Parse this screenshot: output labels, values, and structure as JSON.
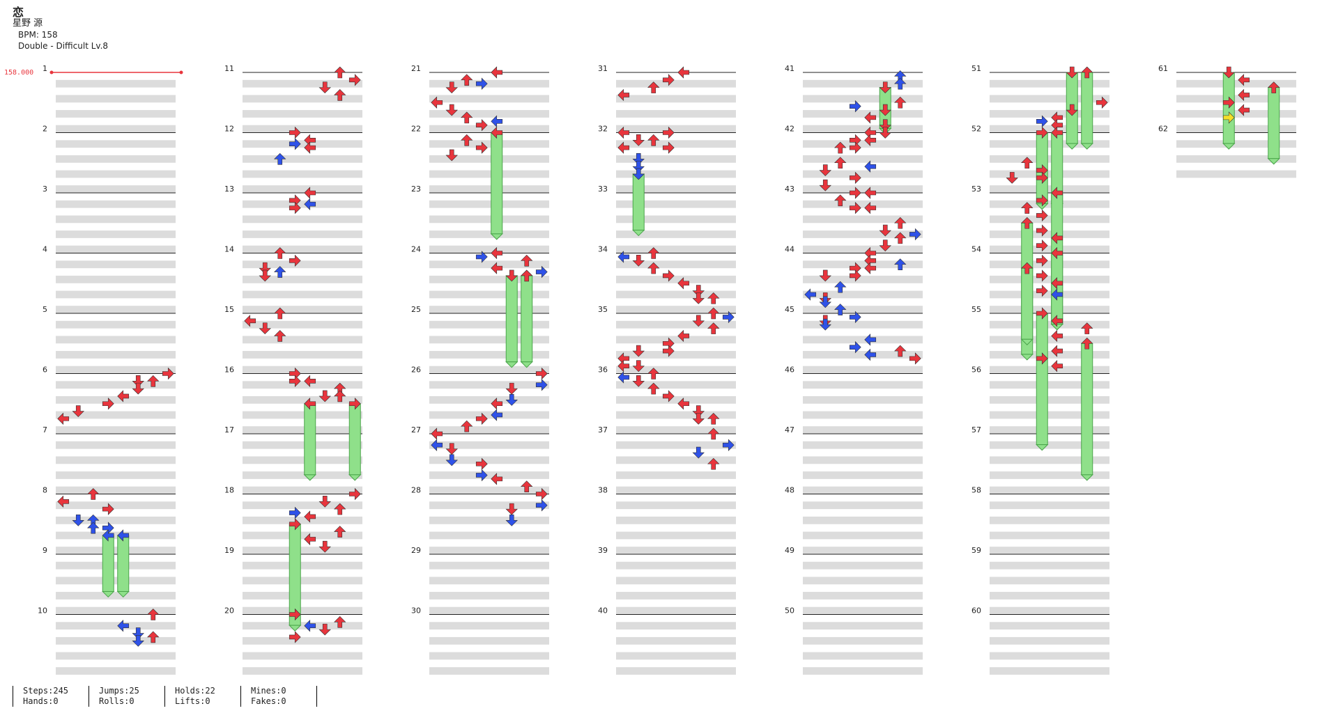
{
  "header": {
    "title": "恋",
    "artist": "星野 源",
    "bpm": "BPM: 158",
    "difficulty": "Double - Difficult Lv.8"
  },
  "bpm_marker": {
    "label": "158.000"
  },
  "colors": {
    "red": "#e8353d",
    "blue": "#2f52e8",
    "yellow": "#f3df28",
    "hold": "#8fe08a",
    "band": "#dcdcdc"
  },
  "measures": [
    {
      "n": "1",
      "notes": []
    },
    {
      "n": "2",
      "notes": []
    },
    {
      "n": "3",
      "notes": []
    },
    {
      "n": "4",
      "notes": []
    },
    {
      "n": "5",
      "notes": []
    },
    {
      "n": "6",
      "notes": [
        [
          0,
          7,
          "R"
        ],
        [
          0.5,
          5,
          "D"
        ],
        [
          0.5,
          6,
          "U"
        ],
        [
          1,
          5,
          "D"
        ],
        [
          1.5,
          4,
          "L"
        ],
        [
          2,
          3,
          "R"
        ],
        [
          2.5,
          1,
          "D"
        ],
        [
          3,
          0,
          "L"
        ]
      ]
    },
    {
      "n": "7",
      "notes": []
    },
    {
      "n": "8",
      "notes": [
        [
          0,
          2,
          "U"
        ],
        [
          0.5,
          0,
          "L"
        ],
        [
          1,
          3,
          "R"
        ],
        [
          1.75,
          1,
          "D"
        ],
        [
          1.75,
          2,
          "U"
        ],
        [
          2.25,
          2,
          "U"
        ],
        [
          2.25,
          3,
          "R"
        ],
        [
          2.75,
          3,
          "L",
          1
        ],
        [
          2.75,
          4,
          "L",
          1
        ]
      ]
    },
    {
      "n": "9",
      "notes": []
    },
    {
      "n": "10",
      "notes": [
        [
          0,
          6,
          "U"
        ],
        [
          0.75,
          4,
          "L"
        ],
        [
          1.25,
          5,
          "D"
        ],
        [
          1.75,
          5,
          "D"
        ],
        [
          1.5,
          6,
          "U"
        ]
      ]
    },
    {
      "n": "11",
      "notes": [
        [
          0,
          6,
          "U"
        ],
        [
          0.5,
          7,
          "R"
        ],
        [
          1,
          5,
          "D"
        ],
        [
          1.5,
          6,
          "U"
        ]
      ]
    },
    {
      "n": "12",
      "notes": [
        [
          0,
          3,
          "R"
        ],
        [
          0.5,
          4,
          "L"
        ],
        [
          0.75,
          3,
          "R"
        ],
        [
          1,
          4,
          "L"
        ],
        [
          1.75,
          2,
          "U"
        ]
      ]
    },
    {
      "n": "13",
      "notes": [
        [
          0,
          4,
          "L"
        ],
        [
          0.5,
          3,
          "R"
        ],
        [
          0.75,
          4,
          "L"
        ],
        [
          1,
          3,
          "R"
        ]
      ]
    },
    {
      "n": "14",
      "notes": [
        [
          0,
          2,
          "U"
        ],
        [
          0.5,
          3,
          "R"
        ],
        [
          1,
          1,
          "D"
        ],
        [
          1.25,
          2,
          "U"
        ],
        [
          1.5,
          1,
          "D"
        ]
      ]
    },
    {
      "n": "15",
      "notes": [
        [
          0,
          2,
          "U"
        ],
        [
          0.5,
          0,
          "L"
        ],
        [
          1,
          1,
          "D"
        ],
        [
          1.5,
          2,
          "U"
        ]
      ]
    },
    {
      "n": "16",
      "notes": [
        [
          0,
          3,
          "R"
        ],
        [
          0.5,
          3,
          "R"
        ],
        [
          0.5,
          4,
          "L"
        ],
        [
          1,
          6,
          "U"
        ],
        [
          1.5,
          5,
          "D"
        ],
        [
          1.5,
          6,
          "U"
        ],
        [
          2,
          4,
          "L",
          1.25
        ],
        [
          2,
          7,
          "R",
          1.25
        ]
      ]
    },
    {
      "n": "17",
      "notes": []
    },
    {
      "n": "18",
      "notes": [
        [
          0,
          7,
          "R"
        ],
        [
          0.5,
          5,
          "D"
        ],
        [
          1,
          6,
          "U"
        ],
        [
          1.25,
          3,
          "R"
        ],
        [
          1.5,
          4,
          "L"
        ],
        [
          2,
          3,
          "R",
          1.75
        ],
        [
          2.5,
          6,
          "U"
        ],
        [
          3,
          4,
          "L"
        ],
        [
          3.5,
          5,
          "D"
        ]
      ]
    },
    {
      "n": "19",
      "notes": []
    },
    {
      "n": "20",
      "notes": [
        [
          0,
          3,
          "R"
        ],
        [
          0.5,
          6,
          "U"
        ],
        [
          0.75,
          4,
          "L"
        ],
        [
          1,
          5,
          "D"
        ],
        [
          1.5,
          3,
          "R"
        ]
      ]
    },
    {
      "n": "21",
      "notes": [
        [
          0,
          4,
          "L"
        ],
        [
          0.5,
          2,
          "U"
        ],
        [
          0.75,
          3,
          "R"
        ],
        [
          1,
          1,
          "D"
        ],
        [
          2,
          0,
          "L"
        ],
        [
          2.5,
          1,
          "D"
        ],
        [
          3,
          2,
          "U"
        ],
        [
          3.25,
          4,
          "L"
        ],
        [
          3.5,
          3,
          "R"
        ],
        [
          4,
          4,
          "L",
          1.75
        ],
        [
          4.5,
          2,
          "U"
        ],
        [
          5,
          3,
          "R"
        ],
        [
          5.5,
          1,
          "D"
        ]
      ]
    },
    {
      "n": "22",
      "notes": []
    },
    {
      "n": "23",
      "notes": []
    },
    {
      "n": "24",
      "notes": [
        [
          0,
          4,
          "L"
        ],
        [
          0.25,
          3,
          "R"
        ],
        [
          0.5,
          6,
          "U"
        ],
        [
          1,
          4,
          "L"
        ],
        [
          1.25,
          7,
          "R"
        ],
        [
          1.5,
          6,
          "U"
        ],
        [
          1.5,
          5,
          "D",
          1.5
        ],
        [
          1.5,
          6,
          "U",
          1.5
        ]
      ]
    },
    {
      "n": "25",
      "notes": []
    },
    {
      "n": "26",
      "notes": [
        [
          0,
          7,
          "R"
        ],
        [
          0.75,
          7,
          "R"
        ],
        [
          1,
          5,
          "D"
        ],
        [
          1.75,
          5,
          "D"
        ],
        [
          2,
          4,
          "L"
        ],
        [
          2.75,
          4,
          "L"
        ],
        [
          3,
          3,
          "R"
        ],
        [
          3.5,
          2,
          "U"
        ],
        [
          4,
          0,
          "L"
        ],
        [
          4.75,
          0,
          "L"
        ],
        [
          5,
          1,
          "D"
        ],
        [
          5.75,
          1,
          "D"
        ],
        [
          6,
          3,
          "R"
        ],
        [
          6.75,
          3,
          "R"
        ],
        [
          7,
          4,
          "L"
        ],
        [
          7.5,
          6,
          "U"
        ],
        [
          8,
          7,
          "R"
        ],
        [
          8.75,
          7,
          "R"
        ],
        [
          9,
          5,
          "D"
        ],
        [
          9.75,
          5,
          "D"
        ]
      ]
    },
    {
      "n": "27",
      "notes": []
    },
    {
      "n": "28",
      "notes": []
    },
    {
      "n": "29",
      "notes": []
    },
    {
      "n": "30",
      "notes": []
    },
    {
      "n": "31",
      "notes": [
        [
          0,
          4,
          "L"
        ],
        [
          0.5,
          3,
          "R"
        ],
        [
          1,
          2,
          "U"
        ],
        [
          1.5,
          0,
          "L"
        ]
      ]
    },
    {
      "n": "32",
      "notes": [
        [
          0,
          0,
          "L"
        ],
        [
          0,
          3,
          "R"
        ],
        [
          0.5,
          1,
          "D"
        ],
        [
          0.5,
          2,
          "U"
        ],
        [
          1,
          0,
          "L"
        ],
        [
          1,
          3,
          "R"
        ],
        [
          1.75,
          1,
          "D"
        ],
        [
          2.25,
          1,
          "D"
        ],
        [
          2.75,
          1,
          "D",
          1
        ]
      ]
    },
    {
      "n": "33",
      "notes": []
    },
    {
      "n": "34",
      "notes": [
        [
          0,
          2,
          "U"
        ],
        [
          0.25,
          0,
          "L"
        ],
        [
          0.5,
          1,
          "D"
        ],
        [
          1,
          2,
          "U"
        ],
        [
          1.5,
          3,
          "R"
        ],
        [
          2,
          4,
          "L"
        ],
        [
          2.5,
          5,
          "D"
        ],
        [
          3,
          5,
          "D"
        ],
        [
          3,
          6,
          "U"
        ],
        [
          4,
          6,
          "U"
        ],
        [
          4.25,
          7,
          "R"
        ],
        [
          4.5,
          5,
          "D"
        ],
        [
          5,
          6,
          "U"
        ],
        [
          5.5,
          4,
          "L"
        ],
        [
          6,
          3,
          "R"
        ],
        [
          6.5,
          1,
          "D"
        ],
        [
          6.5,
          3,
          "R"
        ],
        [
          7,
          0,
          "L"
        ],
        [
          7.5,
          0,
          "L"
        ],
        [
          7.5,
          1,
          "D"
        ],
        [
          8,
          2,
          "U"
        ],
        [
          8.25,
          0,
          "L"
        ],
        [
          8.5,
          1,
          "D"
        ],
        [
          9,
          2,
          "U"
        ],
        [
          9.5,
          3,
          "R"
        ],
        [
          10,
          4,
          "L"
        ],
        [
          10.5,
          5,
          "D"
        ],
        [
          11,
          5,
          "D"
        ],
        [
          11,
          6,
          "U"
        ],
        [
          12,
          6,
          "U"
        ],
        [
          12.75,
          7,
          "R"
        ],
        [
          13.25,
          5,
          "D"
        ],
        [
          14,
          6,
          "U"
        ]
      ]
    },
    {
      "n": "35",
      "notes": []
    },
    {
      "n": "36",
      "notes": []
    },
    {
      "n": "37",
      "notes": []
    },
    {
      "n": "38",
      "notes": []
    },
    {
      "n": "39",
      "notes": []
    },
    {
      "n": "40",
      "notes": []
    },
    {
      "n": "41",
      "notes": [
        [
          0.25,
          6,
          "U"
        ],
        [
          0.75,
          6,
          "U"
        ],
        [
          1,
          5,
          "D",
          0.75
        ],
        [
          2,
          6,
          "U"
        ],
        [
          2.25,
          3,
          "R"
        ],
        [
          2.5,
          5,
          "D"
        ],
        [
          3,
          4,
          "L"
        ],
        [
          3.5,
          5,
          "D"
        ],
        [
          4,
          5,
          "D"
        ],
        [
          4,
          4,
          "L"
        ],
        [
          4.5,
          3,
          "R"
        ],
        [
          4.5,
          4,
          "L"
        ],
        [
          5,
          2,
          "U"
        ],
        [
          5,
          3,
          "R"
        ],
        [
          6,
          2,
          "U"
        ],
        [
          6.25,
          4,
          "L"
        ],
        [
          6.5,
          1,
          "D"
        ],
        [
          7,
          3,
          "R"
        ],
        [
          7.5,
          1,
          "D"
        ],
        [
          8,
          3,
          "R"
        ],
        [
          8,
          4,
          "L"
        ],
        [
          8.5,
          2,
          "U"
        ],
        [
          9,
          3,
          "R"
        ],
        [
          9,
          4,
          "L"
        ],
        [
          10,
          6,
          "U"
        ],
        [
          10.5,
          5,
          "D"
        ],
        [
          10.75,
          7,
          "R"
        ],
        [
          11,
          6,
          "U"
        ],
        [
          11.5,
          5,
          "D"
        ],
        [
          12,
          4,
          "L"
        ],
        [
          12.5,
          4,
          "L"
        ],
        [
          12.75,
          6,
          "U"
        ],
        [
          13,
          3,
          "R"
        ],
        [
          13,
          4,
          "L"
        ],
        [
          13.5,
          1,
          "D"
        ],
        [
          13.5,
          3,
          "R"
        ],
        [
          14.25,
          2,
          "U"
        ],
        [
          14.75,
          0,
          "L"
        ],
        [
          15,
          1,
          "D"
        ],
        [
          15.25,
          1,
          "D"
        ],
        [
          15.75,
          2,
          "U"
        ],
        [
          16.5,
          1,
          "D"
        ],
        [
          16.75,
          1,
          "D"
        ],
        [
          16.25,
          3,
          "R"
        ],
        [
          17.75,
          4,
          "L"
        ],
        [
          18.25,
          3,
          "R"
        ],
        [
          18.75,
          4,
          "L"
        ],
        [
          18.5,
          6,
          "U"
        ],
        [
          19,
          7,
          "R"
        ]
      ]
    },
    {
      "n": "42",
      "notes": []
    },
    {
      "n": "43",
      "notes": []
    },
    {
      "n": "44",
      "notes": []
    },
    {
      "n": "45",
      "notes": []
    },
    {
      "n": "46",
      "notes": []
    },
    {
      "n": "47",
      "notes": []
    },
    {
      "n": "48",
      "notes": []
    },
    {
      "n": "49",
      "notes": []
    },
    {
      "n": "50",
      "notes": []
    },
    {
      "n": "51",
      "notes": [
        [
          0,
          5,
          "D",
          1.25
        ],
        [
          0,
          6,
          "U",
          1.25
        ],
        [
          2,
          7,
          "R"
        ],
        [
          2.5,
          5,
          "D"
        ],
        [
          3,
          4,
          "L"
        ],
        [
          3.25,
          3,
          "R"
        ],
        [
          3.5,
          4,
          "L"
        ],
        [
          4,
          3,
          "R",
          1.25
        ],
        [
          4,
          4,
          "L",
          1.25
        ],
        [
          6,
          2,
          "U"
        ],
        [
          6.5,
          3,
          "R"
        ],
        [
          7,
          1,
          "D"
        ],
        [
          7,
          3,
          "R"
        ],
        [
          8,
          4,
          "L",
          2.25
        ],
        [
          8.5,
          3,
          "R"
        ],
        [
          9,
          2,
          "U"
        ],
        [
          9.5,
          3,
          "R"
        ],
        [
          10,
          2,
          "U",
          2.25
        ],
        [
          10.5,
          3,
          "R"
        ],
        [
          11,
          4,
          "L"
        ],
        [
          11.5,
          3,
          "R"
        ],
        [
          12,
          4,
          "L",
          1.25
        ],
        [
          12.5,
          3,
          "R"
        ],
        [
          13,
          2,
          "U",
          1.25
        ],
        [
          13.5,
          3,
          "R"
        ],
        [
          14,
          4,
          "L"
        ],
        [
          14.5,
          3,
          "R"
        ],
        [
          14.75,
          4,
          "L"
        ],
        [
          16,
          3,
          "R",
          2.25
        ],
        [
          16.5,
          4,
          "L"
        ],
        [
          17,
          6,
          "U"
        ],
        [
          17.5,
          4,
          "L"
        ],
        [
          18,
          6,
          "U",
          2.25
        ],
        [
          18.5,
          4,
          "L"
        ],
        [
          19,
          3,
          "R"
        ],
        [
          19.5,
          4,
          "L"
        ]
      ]
    },
    {
      "n": "52",
      "notes": []
    },
    {
      "n": "53",
      "notes": []
    },
    {
      "n": "54",
      "notes": []
    },
    {
      "n": "55",
      "notes": []
    },
    {
      "n": "56",
      "notes": []
    },
    {
      "n": "57",
      "notes": []
    },
    {
      "n": "58",
      "notes": []
    },
    {
      "n": "59",
      "notes": []
    },
    {
      "n": "60",
      "notes": []
    },
    {
      "n": "61",
      "notes": [
        [
          0,
          3,
          "D",
          1.25
        ],
        [
          0.5,
          4,
          "L"
        ],
        [
          1,
          6,
          "U",
          1.25
        ],
        [
          1.5,
          4,
          "L"
        ],
        [
          2,
          3,
          "R"
        ],
        [
          2.5,
          4,
          "L"
        ],
        [
          3,
          3,
          "R",
          "Y"
        ]
      ]
    },
    {
      "n": "62",
      "notes": []
    }
  ],
  "stats": [
    {
      "a": "Steps:245",
      "b": "Hands:0"
    },
    {
      "a": "Jumps:25",
      "b": "Rolls:0"
    },
    {
      "a": "Holds:22",
      "b": "Lifts:0"
    },
    {
      "a": "Mines:0",
      "b": "Fakes:0"
    }
  ]
}
